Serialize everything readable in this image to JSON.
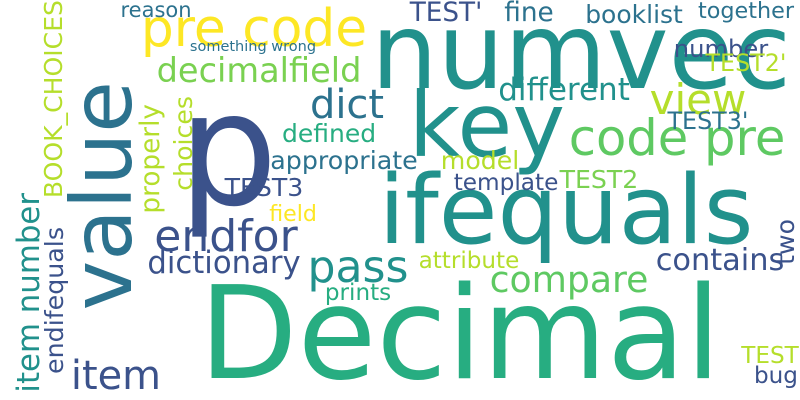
{
  "words": [
    {
      "text": "p",
      "color": "#3b528b",
      "vertical": false
    },
    {
      "text": "Decimal",
      "color": "#27ad81",
      "vertical": false
    },
    {
      "text": "value",
      "color": "#2c728e",
      "vertical": true
    },
    {
      "text": "numvec",
      "color": "#21918c",
      "vertical": false
    },
    {
      "text": "ifequals",
      "color": "#21918c",
      "vertical": false
    },
    {
      "text": "key",
      "color": "#21918c",
      "vertical": false
    },
    {
      "text": "pre code",
      "color": "#fde725",
      "vertical": false
    },
    {
      "text": "code pre",
      "color": "#5ec962",
      "vertical": false
    },
    {
      "text": "item number",
      "color": "#21918c",
      "vertical": true
    },
    {
      "text": "endfor",
      "color": "#3b528b",
      "vertical": false
    },
    {
      "text": "compare",
      "color": "#5ec962",
      "vertical": false
    },
    {
      "text": "pass",
      "color": "#21918c",
      "vertical": false
    },
    {
      "text": "dict",
      "color": "#2c728e",
      "vertical": false
    },
    {
      "text": "item",
      "color": "#3b528b",
      "vertical": false
    },
    {
      "text": "view",
      "color": "#b5de2b",
      "vertical": false
    },
    {
      "text": "different",
      "color": "#21918c",
      "vertical": false
    },
    {
      "text": "decimalfield",
      "color": "#7ad151",
      "vertical": false
    },
    {
      "text": "dictionary",
      "color": "#3b528b",
      "vertical": false
    },
    {
      "text": "contains",
      "color": "#3b528b",
      "vertical": false
    },
    {
      "text": "endifequals",
      "color": "#3b528b",
      "vertical": true
    },
    {
      "text": "appropriate",
      "color": "#2c728e",
      "vertical": false
    },
    {
      "text": "defined",
      "color": "#27ad81",
      "vertical": false
    },
    {
      "text": "booklist",
      "color": "#2c728e",
      "vertical": false
    },
    {
      "text": "together",
      "color": "#2c728e",
      "vertical": false
    },
    {
      "text": "number",
      "color": "#3b528b",
      "vertical": false
    },
    {
      "text": "TEST'",
      "color": "#3b528b",
      "vertical": false
    },
    {
      "text": "fine",
      "color": "#2c728e",
      "vertical": false
    },
    {
      "text": "reason",
      "color": "#2c728e",
      "vertical": false
    },
    {
      "text": "TEST2'",
      "color": "#b5de2b",
      "vertical": false
    },
    {
      "text": "TEST3'",
      "color": "#2c728e",
      "vertical": false
    },
    {
      "text": "TEST3",
      "color": "#3b528b",
      "vertical": false
    },
    {
      "text": "TEST2",
      "color": "#7ad151",
      "vertical": false
    },
    {
      "text": "template",
      "color": "#3b528b",
      "vertical": false
    },
    {
      "text": "model",
      "color": "#b5de2b",
      "vertical": false
    },
    {
      "text": "attribute",
      "color": "#b5de2b",
      "vertical": false
    },
    {
      "text": "prints",
      "color": "#27ad81",
      "vertical": false
    },
    {
      "text": "field",
      "color": "#fde725",
      "vertical": false
    },
    {
      "text": "something wrong",
      "color": "#2c728e",
      "vertical": false
    },
    {
      "text": "BOOK_CHOICES",
      "color": "#b5de2b",
      "vertical": true
    },
    {
      "text": "properly",
      "color": "#b5de2b",
      "vertical": true
    },
    {
      "text": "choices",
      "color": "#b5de2b",
      "vertical": true
    },
    {
      "text": "two",
      "color": "#3b528b",
      "vertical": true
    },
    {
      "text": "TEST",
      "color": "#b5de2b",
      "vertical": false
    },
    {
      "text": "bug",
      "color": "#3b528b",
      "vertical": false
    }
  ]
}
